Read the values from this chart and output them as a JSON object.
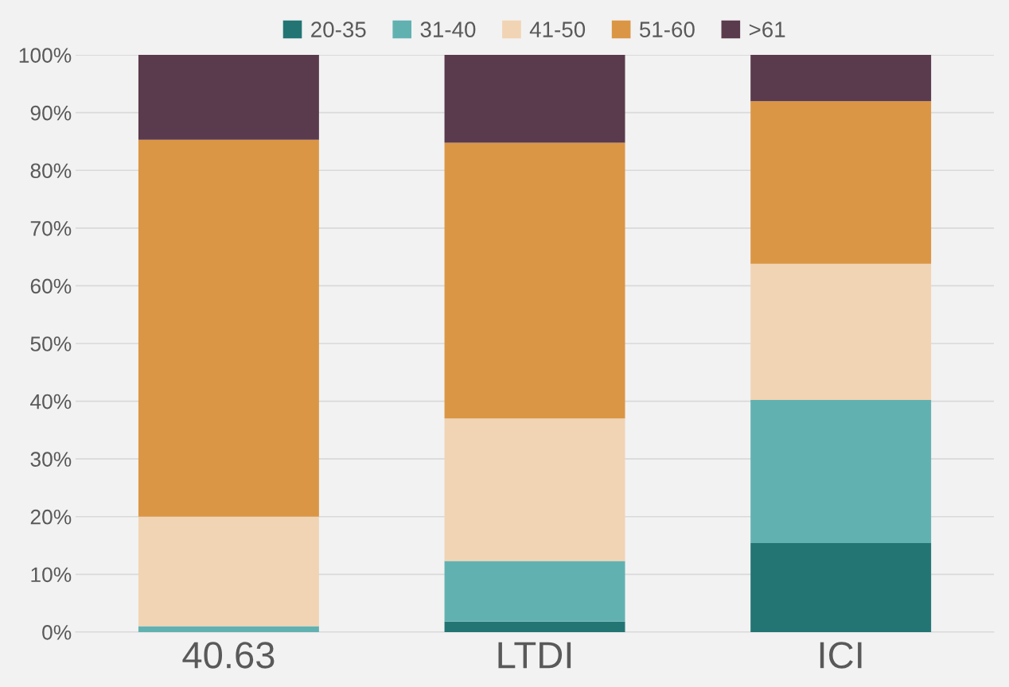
{
  "chart_data": {
    "type": "bar",
    "stacked": true,
    "categories": [
      "40.63",
      "LTDI",
      "ICI"
    ],
    "series": [
      {
        "name": "20-35",
        "color": "#237574",
        "values": [
          0,
          1.8,
          15.4
        ]
      },
      {
        "name": "31-40",
        "color": "#62b1b1",
        "values": [
          1.0,
          10.5,
          24.8
        ]
      },
      {
        "name": "41-50",
        "color": "#f1d4b4",
        "values": [
          19.0,
          24.7,
          23.6
        ]
      },
      {
        "name": "51-60",
        "color": "#db9645",
        "values": [
          65.3,
          47.8,
          28.2
        ]
      },
      {
        "name": ">61",
        "color": "#5a3a4d",
        "values": [
          14.7,
          15.2,
          8.0
        ]
      }
    ],
    "ylim": [
      0,
      100
    ],
    "yticks": [
      {
        "value": 0,
        "label": "0%"
      },
      {
        "value": 10,
        "label": "10%"
      },
      {
        "value": 20,
        "label": "20%"
      },
      {
        "value": 30,
        "label": "30%"
      },
      {
        "value": 40,
        "label": "40%"
      },
      {
        "value": 50,
        "label": "50%"
      },
      {
        "value": 60,
        "label": "60%"
      },
      {
        "value": 70,
        "label": "70%"
      },
      {
        "value": 80,
        "label": "80%"
      },
      {
        "value": 90,
        "label": "90%"
      },
      {
        "value": 100,
        "label": "100%"
      }
    ],
    "grid": "y",
    "legend": "top"
  }
}
